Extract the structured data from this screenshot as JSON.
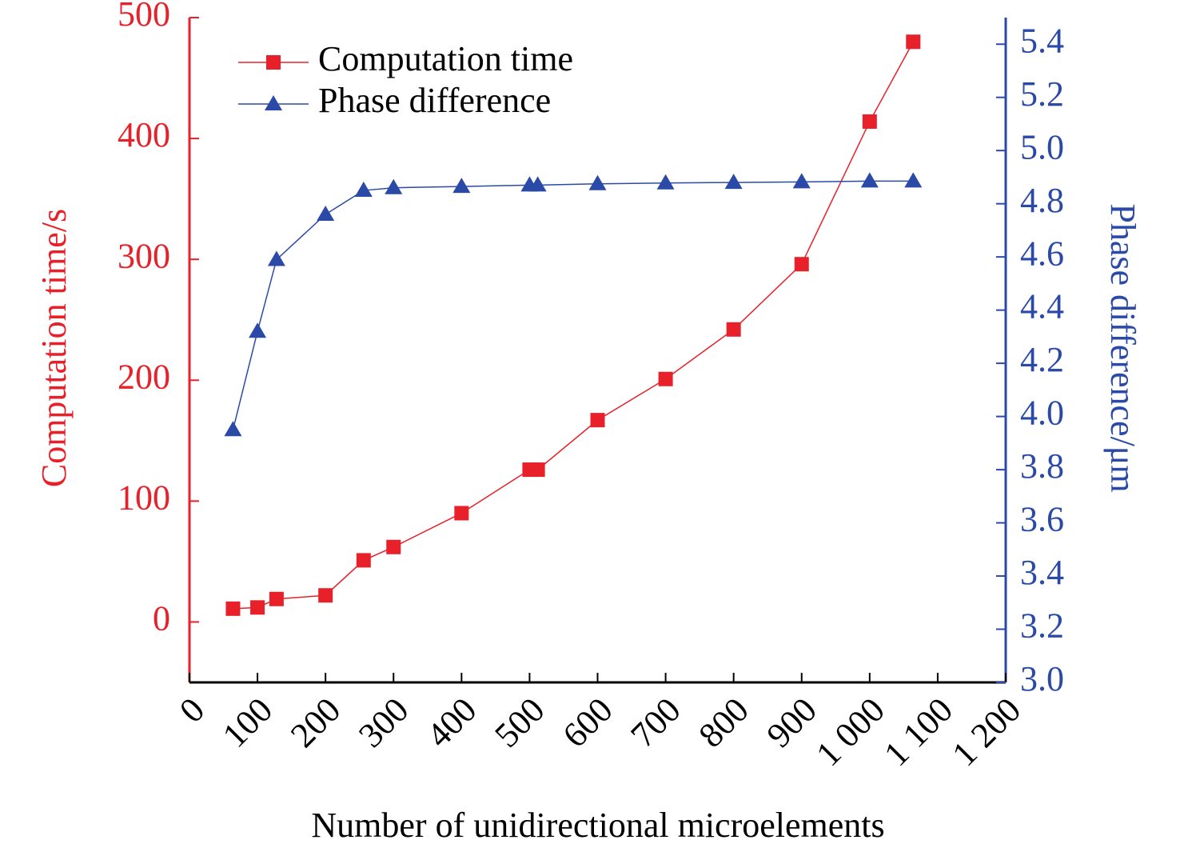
{
  "chart_data": {
    "type": "line",
    "x_label": "Number of unidirectional microelements",
    "y_label": "Computation time/s",
    "y2_label": "Phase difference/μm",
    "xlim": [
      0,
      1200
    ],
    "xticks": [
      0,
      100,
      200,
      300,
      400,
      500,
      600,
      700,
      800,
      900,
      {
        "value": 1000,
        "label": "1 000"
      },
      {
        "value": 1100,
        "label": "1 100"
      },
      {
        "value": 1200,
        "label": "1 200"
      }
    ],
    "ylim": [
      -50,
      500
    ],
    "yticks": [
      0,
      100,
      200,
      300,
      400,
      500
    ],
    "y2lim": [
      3.0,
      5.5
    ],
    "y2ticks": [
      {
        "value": 3.0,
        "label": "3.0"
      },
      {
        "value": 3.2,
        "label": "3.2"
      },
      {
        "value": 3.4,
        "label": "3.4"
      },
      {
        "value": 3.6,
        "label": "3.6"
      },
      {
        "value": 3.8,
        "label": "3.8"
      },
      {
        "value": 4.0,
        "label": "4.0"
      },
      {
        "value": 4.2,
        "label": "4.2"
      },
      {
        "value": 4.4,
        "label": "4.4"
      },
      {
        "value": 4.6,
        "label": "4.6"
      },
      {
        "value": 4.8,
        "label": "4.8"
      },
      {
        "value": 5.0,
        "label": "5.0"
      },
      {
        "value": 5.2,
        "label": "5.2"
      },
      {
        "value": 5.4,
        "label": "5.4"
      }
    ],
    "x": [
      64,
      100,
      128,
      200,
      256,
      300,
      400,
      500,
      512,
      600,
      700,
      800,
      900,
      1000,
      1064
    ],
    "legend": "upper left",
    "series": [
      {
        "name": "Computation time",
        "color": "#e8202a",
        "marker": "square",
        "values": [
          11,
          12,
          19,
          22,
          51,
          62,
          90,
          126,
          126,
          167,
          201,
          242,
          296,
          414,
          480
        ]
      },
      {
        "name": "Phase difference",
        "color": "#2b4aa8",
        "marker": "triangle",
        "axis": "y2",
        "values": [
          3.95,
          4.32,
          4.59,
          4.76,
          4.85,
          4.86,
          4.865,
          4.87,
          4.87,
          4.875,
          4.878,
          4.88,
          4.882,
          4.885,
          4.885
        ]
      }
    ]
  }
}
